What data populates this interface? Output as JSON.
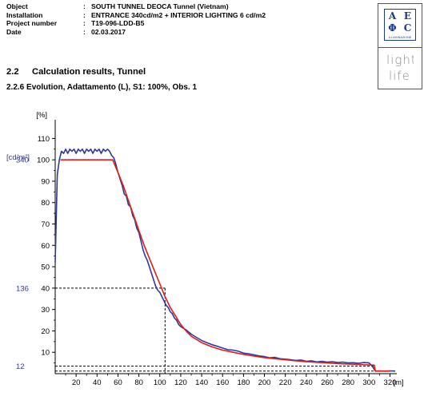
{
  "header": {
    "rows": [
      {
        "label": "Object",
        "value": "SOUTH TUNNEL DEOCA Tunnel (Vietnam)"
      },
      {
        "label": "Installation",
        "value": "ENTRANCE 340cd/m2 + INTERIOR LIGHTING 6 cd/m2"
      },
      {
        "label": "Project number",
        "value": "T19-096-LDD-B5"
      },
      {
        "label": "Date",
        "value": "02.03.2017"
      }
    ],
    "separator": ":"
  },
  "logo": {
    "letters": [
      "A",
      "E",
      "Φ",
      "C"
    ],
    "brand": "ILLUMINAZIONE",
    "tagline": "light life"
  },
  "section": {
    "number": "2.2",
    "title": "Calculation results, Tunnel"
  },
  "subsection": {
    "text": "2.2.6  Evolution, Adattamento (L), S1: 100%, Obs. 1"
  },
  "chart_data": {
    "type": "line",
    "y_unit_label": "[%]",
    "y2_unit_label": "[cd/m²]",
    "x_unit_label": "[m]",
    "xlim": [
      0,
      325
    ],
    "ylim": [
      0,
      115
    ],
    "x_ticks": [
      20,
      40,
      60,
      80,
      100,
      120,
      140,
      160,
      180,
      200,
      220,
      240,
      260,
      280,
      300,
      320
    ],
    "x_tick_labels": [
      "20",
      "40",
      "60",
      "80",
      "100",
      "120",
      "140",
      "160",
      "180",
      "200",
      "220",
      "240",
      "260",
      "280",
      "300",
      "320"
    ],
    "y_ticks": [
      10,
      20,
      30,
      40,
      50,
      60,
      70,
      80,
      90,
      100,
      110
    ],
    "y_tick_labels": [
      "10",
      "20",
      "30",
      "40",
      "50",
      "60",
      "70",
      "80",
      "90",
      "100",
      "110"
    ],
    "cd_labels": [
      {
        "text": "340",
        "y": 100
      },
      {
        "text": "136",
        "y": 40
      },
      {
        "text": "12",
        "y": 3.5
      }
    ],
    "colors": {
      "measured": "#2b3a9a",
      "reference": "#e21b1b",
      "guide": "#000000"
    },
    "series": [
      {
        "key": "measured",
        "x": [
          0,
          2,
          4,
          6,
          8,
          10,
          12,
          14,
          16,
          18,
          20,
          22,
          24,
          26,
          28,
          30,
          32,
          34,
          36,
          38,
          40,
          42,
          44,
          46,
          48,
          50,
          52,
          54,
          56,
          58,
          60,
          62,
          64,
          66,
          68,
          70,
          72,
          74,
          76,
          78,
          80,
          82,
          84,
          86,
          88,
          90,
          92,
          94,
          96,
          98,
          100,
          102,
          104,
          106,
          108,
          110,
          112,
          114,
          116,
          118,
          120,
          125,
          130,
          135,
          140,
          145,
          150,
          155,
          160,
          165,
          170,
          175,
          180,
          185,
          190,
          195,
          200,
          205,
          210,
          215,
          220,
          225,
          230,
          235,
          240,
          245,
          250,
          255,
          260,
          265,
          270,
          275,
          280,
          285,
          290,
          295,
          300,
          303,
          306,
          310,
          315,
          320,
          325
        ],
        "y": [
          52,
          93,
          100,
          104,
          103,
          105,
          103,
          105,
          104,
          105,
          103,
          105,
          104,
          105,
          103,
          105,
          104,
          105,
          103,
          105,
          104,
          105,
          103,
          105,
          104,
          105,
          104,
          102,
          101,
          98,
          94,
          91,
          88,
          84,
          83,
          79,
          78,
          74,
          72,
          68,
          66,
          62,
          58,
          55,
          53,
          50,
          47,
          44,
          41,
          39,
          38,
          36,
          34,
          32,
          31,
          29,
          28,
          26,
          25,
          23,
          22,
          20.5,
          18.5,
          17,
          15.5,
          14.5,
          13.5,
          12.8,
          12,
          11.2,
          11,
          10.5,
          9.6,
          9.3,
          8.8,
          8.3,
          8,
          7.4,
          7.6,
          7,
          6.8,
          6.5,
          6.2,
          6.4,
          5.8,
          6,
          5.5,
          5.8,
          5.4,
          5.6,
          5.2,
          5.4,
          5,
          5.1,
          4.8,
          5.2,
          5,
          3.6,
          1.2,
          1.3,
          1.2,
          1.3,
          1.2
        ]
      },
      {
        "key": "reference",
        "x": [
          5,
          10,
          20,
          30,
          40,
          50,
          55,
          60,
          65,
          70,
          75,
          80,
          85,
          90,
          95,
          100,
          105,
          110,
          115,
          120,
          125,
          130,
          140,
          150,
          160,
          170,
          180,
          190,
          200,
          210,
          220,
          230,
          240,
          250,
          260,
          270,
          280,
          290,
          300,
          305,
          306,
          310,
          320
        ],
        "y": [
          100,
          100,
          100,
          100,
          100,
          100,
          100,
          94,
          88,
          81,
          74,
          67,
          60,
          54,
          48,
          42,
          36,
          31,
          27,
          23,
          20,
          17.5,
          14.5,
          12.5,
          11,
          10,
          9,
          8.2,
          7.5,
          7,
          6.5,
          6,
          5.6,
          5.3,
          5,
          4.7,
          4.5,
          4.3,
          4.1,
          4,
          1.2,
          1.2,
          1.2
        ]
      }
    ],
    "guide_lines": {
      "h40_to_x": 105,
      "v_at_x": 105,
      "h_levels": [
        3.5,
        1.2
      ]
    },
    "grid": false
  }
}
